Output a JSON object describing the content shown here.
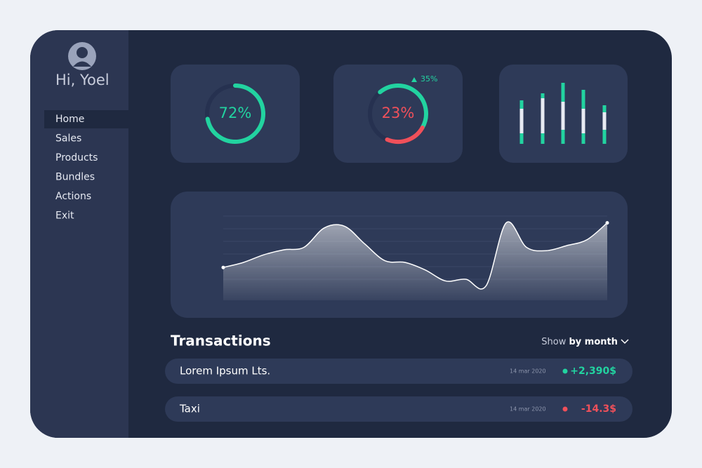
{
  "sidebar": {
    "greeting": "Hi, Yoel",
    "menu": [
      "Home",
      "Sales",
      "Products",
      "Bundles",
      "Actions",
      "Exit"
    ]
  },
  "cards": [
    {
      "ring": {
        "value": 72,
        "label": "72%"
      },
      "color": "#22d3a0"
    },
    {
      "ring": {
        "value": 23,
        "label": "23%"
      },
      "color": "#f0505a",
      "rest_color": "#22d3a0",
      "change": "35%"
    }
  ],
  "bars": {
    "ylim": [
      0,
      87
    ],
    "segments": [
      {
        "color": "#22d3a0",
        "values": [
          15,
          15,
          20,
          15,
          20
        ]
      },
      {
        "color": "#e8ebf3",
        "values": [
          35,
          50,
          40,
          35,
          25
        ]
      },
      {
        "color": "#22d3a0",
        "values": [
          12,
          7,
          27,
          27,
          10
        ]
      }
    ]
  },
  "trend": {
    "ylim": [
      0,
      100
    ],
    "values": [
      39,
      45,
      54,
      60,
      63,
      86,
      88,
      67,
      47,
      45,
      36,
      23,
      25,
      17,
      92,
      63,
      59,
      65,
      72,
      92
    ]
  },
  "transactions": {
    "title": "Transactions",
    "filter_prefix": "Show",
    "filter_value": "by month",
    "rows": [
      {
        "name": "Lorem Ipsum Lts.",
        "date": "14 mar 2020",
        "amount": "+2,390$",
        "color": "#22d3a0"
      },
      {
        "name": "Taxi",
        "date": "14 mar 2020",
        "amount": "-14.3$",
        "color": "#f0505a"
      }
    ]
  }
}
